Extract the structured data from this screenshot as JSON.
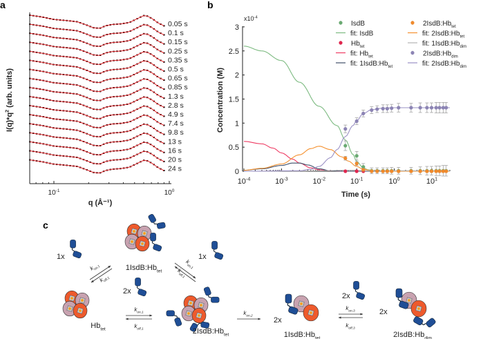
{
  "panels": {
    "a": {
      "label": "a"
    },
    "b": {
      "label": "b"
    },
    "c": {
      "label": "c"
    }
  },
  "chart_data": [
    {
      "panel": "a",
      "type": "line",
      "xlabel": "q (Å⁻¹)",
      "xlabel_parts": {
        "base": "q (Å",
        "sup": "-1",
        "end": ")"
      },
      "ylabel": "I(q)*q² (arb. units)",
      "ylabel_parts": {
        "base": "I(q)*q",
        "sup": "2",
        "end": " (arb. units)"
      },
      "xscale": "log",
      "xlim": [
        0.062,
        0.9
      ],
      "xticks": [
        {
          "value": 0.1,
          "base": "10",
          "exp": "-1"
        },
        {
          "value": 1,
          "base": "10",
          "exp": "0"
        }
      ],
      "data_color": "#000000",
      "fit_color": "#e8262b",
      "series_labels": [
        "0.05 s",
        "0.1 s",
        "0.15 s",
        "0.25 s",
        "0.35 s",
        "0.5 s",
        "0.65 s",
        "0.85 s",
        "1.3 s",
        "2.8 s",
        "4.9 s",
        "7.4 s",
        "9.8 s",
        "13 s",
        "16 s",
        "20 s",
        "24 s"
      ],
      "profile": {
        "q": [
          0.062,
          0.08,
          0.1,
          0.13,
          0.16,
          0.19,
          0.22,
          0.25,
          0.28,
          0.32,
          0.38,
          0.45,
          0.52,
          0.6,
          0.65,
          0.72,
          0.8,
          0.9
        ],
        "intensity": [
          1.0,
          0.9,
          0.78,
          0.72,
          0.66,
          0.5,
          0.35,
          0.32,
          0.45,
          0.52,
          0.55,
          0.62,
          0.8,
          0.98,
          0.95,
          0.8,
          0.6,
          0.45
        ]
      }
    },
    {
      "panel": "b",
      "type": "line",
      "xlabel": "Time (s)",
      "ylabel": "Concentration (M)",
      "y_multiplier": {
        "base": "x10",
        "exp": "-4"
      },
      "xscale": "log",
      "xlim": [
        0.0001,
        30
      ],
      "ylim": [
        0,
        3
      ],
      "xticks": [
        {
          "value": 0.0001,
          "base": "10",
          "exp": "-4"
        },
        {
          "value": 0.001,
          "base": "10",
          "exp": "-3"
        },
        {
          "value": 0.01,
          "base": "10",
          "exp": "-2"
        },
        {
          "value": 0.1,
          "base": "10",
          "exp": "-1"
        },
        {
          "value": 1,
          "base": "10",
          "exp": "0"
        },
        {
          "value": 10,
          "base": "10",
          "exp": "1"
        }
      ],
      "yticks": [
        "0",
        "0.5",
        "1",
        "1.5",
        "2",
        "2.5",
        "3"
      ],
      "legend_position": "top-right",
      "points_x": [
        0.05,
        0.1,
        0.15,
        0.25,
        0.35,
        0.5,
        0.65,
        0.85,
        1.3,
        2.8,
        4.9,
        7.4,
        9.8,
        13,
        16,
        20,
        24
      ],
      "point_series": [
        {
          "name": "IsdB",
          "sub": "",
          "color": "#6aaa72",
          "values": [
            0.53,
            0.32,
            0.09,
            0.01,
            0.01,
            0.01,
            0.01,
            0.01,
            0.01,
            0.01,
            0.01,
            0.01,
            0.01,
            0.01,
            0.01,
            0.01,
            0.01
          ],
          "err": [
            0.1,
            0.09,
            0.07,
            0.06,
            0.06,
            0.06,
            0.06,
            0.07,
            0.07,
            0.07,
            0.08,
            0.09,
            0.09,
            0.1,
            0.1,
            0.11,
            0.11
          ]
        },
        {
          "name": "Hb",
          "sub": "tet",
          "color": "#e0264e",
          "values": [
            0.0,
            0.0,
            0.0
          ],
          "err": [
            0,
            0,
            0
          ]
        },
        {
          "name": "2IsdB:Hb",
          "sub": "tet",
          "color": "#f08a2c",
          "values": [
            0.27,
            0.16,
            0.03,
            0.0,
            0.0,
            0.0,
            0.0,
            0.0,
            0.0,
            0.0,
            0.0,
            0.0,
            0.0,
            0.0,
            0.0,
            0.0,
            0.0
          ],
          "err": [
            0.04,
            0.04,
            0.03,
            0.02,
            0.02,
            0.02,
            0.02,
            0.02,
            0.02,
            0.02,
            0.02,
            0.02,
            0.02,
            0.02,
            0.02,
            0.02,
            0.02
          ]
        },
        {
          "name": "2IsdB:Hb",
          "sub": "dim",
          "color": "#8c84b4",
          "values": [
            0.88,
            1.04,
            1.2,
            1.27,
            1.29,
            1.3,
            1.3,
            1.31,
            1.32,
            1.32,
            1.32,
            1.32,
            1.32,
            1.32,
            1.32,
            1.32,
            1.32
          ],
          "err": [
            0.08,
            0.07,
            0.07,
            0.07,
            0.07,
            0.08,
            0.08,
            0.08,
            0.09,
            0.09,
            0.1,
            0.1,
            0.1,
            0.11,
            0.11,
            0.11,
            0.11
          ]
        }
      ],
      "fit_series": [
        {
          "name": "fit: IsdB",
          "sub": "",
          "color": "#7cba80",
          "x": [
            0.0001,
            0.0003,
            0.001,
            0.003,
            0.01,
            0.03,
            0.05,
            0.08,
            0.1,
            0.15,
            0.2,
            0.3,
            1,
            30
          ],
          "values": [
            2.6,
            2.5,
            2.3,
            1.85,
            1.35,
            0.95,
            0.65,
            0.35,
            0.2,
            0.07,
            0.03,
            0.01,
            0,
            0
          ]
        },
        {
          "name": "fit: Hb",
          "sub": "tet",
          "color": "#ee3a62",
          "x": [
            0.0001,
            0.0003,
            0.0006,
            0.001,
            0.002,
            0.003,
            0.006,
            0.01,
            0.02,
            0.05,
            30
          ],
          "values": [
            0.62,
            0.57,
            0.48,
            0.38,
            0.25,
            0.17,
            0.07,
            0.03,
            0.01,
            0,
            0
          ]
        },
        {
          "name": "fit: 1IsdB:Hb",
          "sub": "tet",
          "color": "#3e4e68",
          "x": [
            0.0001,
            0.0003,
            0.001,
            0.002,
            0.003,
            0.005,
            0.01,
            0.02,
            0.05,
            30
          ],
          "values": [
            0.02,
            0.05,
            0.12,
            0.17,
            0.17,
            0.13,
            0.05,
            0.01,
            0,
            0
          ]
        },
        {
          "name": "fit: 2IsdB:Hb",
          "sub": "tet",
          "color": "#f5902e",
          "x": [
            0.0001,
            0.0003,
            0.001,
            0.003,
            0.006,
            0.01,
            0.02,
            0.04,
            0.06,
            0.1,
            0.15,
            0.25,
            1,
            30
          ],
          "values": [
            0.02,
            0.06,
            0.15,
            0.34,
            0.47,
            0.52,
            0.45,
            0.3,
            0.21,
            0.1,
            0.04,
            0.01,
            0,
            0
          ]
        },
        {
          "name": "fit: 1IsdB:Hb",
          "sub": "dim",
          "color": "#b4b4b4",
          "x": [
            0.0001,
            0.003,
            0.01,
            0.05,
            0.2,
            30
          ],
          "values": [
            0.0,
            0.005,
            0.01,
            0.02,
            0.01,
            0.01
          ]
        },
        {
          "name": "fit: 2IsdB:Hb",
          "sub": "dim",
          "color": "#9a90c4",
          "x": [
            0.0001,
            0.003,
            0.006,
            0.01,
            0.02,
            0.03,
            0.05,
            0.08,
            0.1,
            0.15,
            0.25,
            0.5,
            1,
            30
          ],
          "values": [
            0,
            0.01,
            0.04,
            0.1,
            0.28,
            0.45,
            0.72,
            0.95,
            1.05,
            1.2,
            1.28,
            1.31,
            1.32,
            1.32
          ]
        }
      ],
      "legend_order": [
        {
          "kind": "point",
          "ref": 0
        },
        {
          "kind": "point",
          "ref": 2
        },
        {
          "kind": "fit",
          "ref": 0
        },
        {
          "kind": "fit",
          "ref": 3
        },
        {
          "kind": "point",
          "ref": 1
        },
        {
          "kind": "fit",
          "ref": 4
        },
        {
          "kind": "fit",
          "ref": 1
        },
        {
          "kind": "point",
          "ref": 3
        },
        {
          "kind": "fit",
          "ref": 2
        },
        {
          "kind": "fit",
          "ref": 5
        }
      ]
    }
  ],
  "scheme": {
    "colors": {
      "isdb": "#1f4e96",
      "hb_alpha": "#ee5a2c",
      "hb_beta": "#c8a2b0",
      "heme": "#f4a024"
    },
    "species": {
      "hb_tet": {
        "base": "Hb",
        "sub": "tet"
      },
      "isdb1_hb_tet": {
        "base": "1IsdB:Hb",
        "sub": "tet"
      },
      "isdb2_hb_tet": {
        "base": "2IsdB:Hb",
        "sub": "tet"
      },
      "isdb1_hb_tet_b": {
        "base": "1IsdB:Hb",
        "sub": "tet"
      },
      "isdb2_hb_dim": {
        "base": "2IsdB:Hb",
        "sub": "dim"
      }
    },
    "stoich": {
      "one_a": "1x",
      "one_b": "1x",
      "two_a": "2x",
      "two_b": "2x",
      "two_c": "2x",
      "two_d": "2x"
    },
    "rates": {
      "kon1": {
        "base": "k",
        "sub": "on,1"
      },
      "koff1": {
        "base": "k",
        "sub": "off,1"
      },
      "kon1b": {
        "base": "k",
        "sub": "on,1"
      },
      "koff1b": {
        "base": "k",
        "sub": "off,1"
      },
      "kon1c": {
        "base": "k",
        "sub": "on,1"
      },
      "koff1c": {
        "base": "k",
        "sub": "off,1"
      },
      "kon2": {
        "base": "k",
        "sub": "on,2"
      },
      "kon3": {
        "base": "k",
        "sub": "on,3"
      },
      "koff3": {
        "base": "k",
        "sub": "off,3"
      }
    }
  }
}
